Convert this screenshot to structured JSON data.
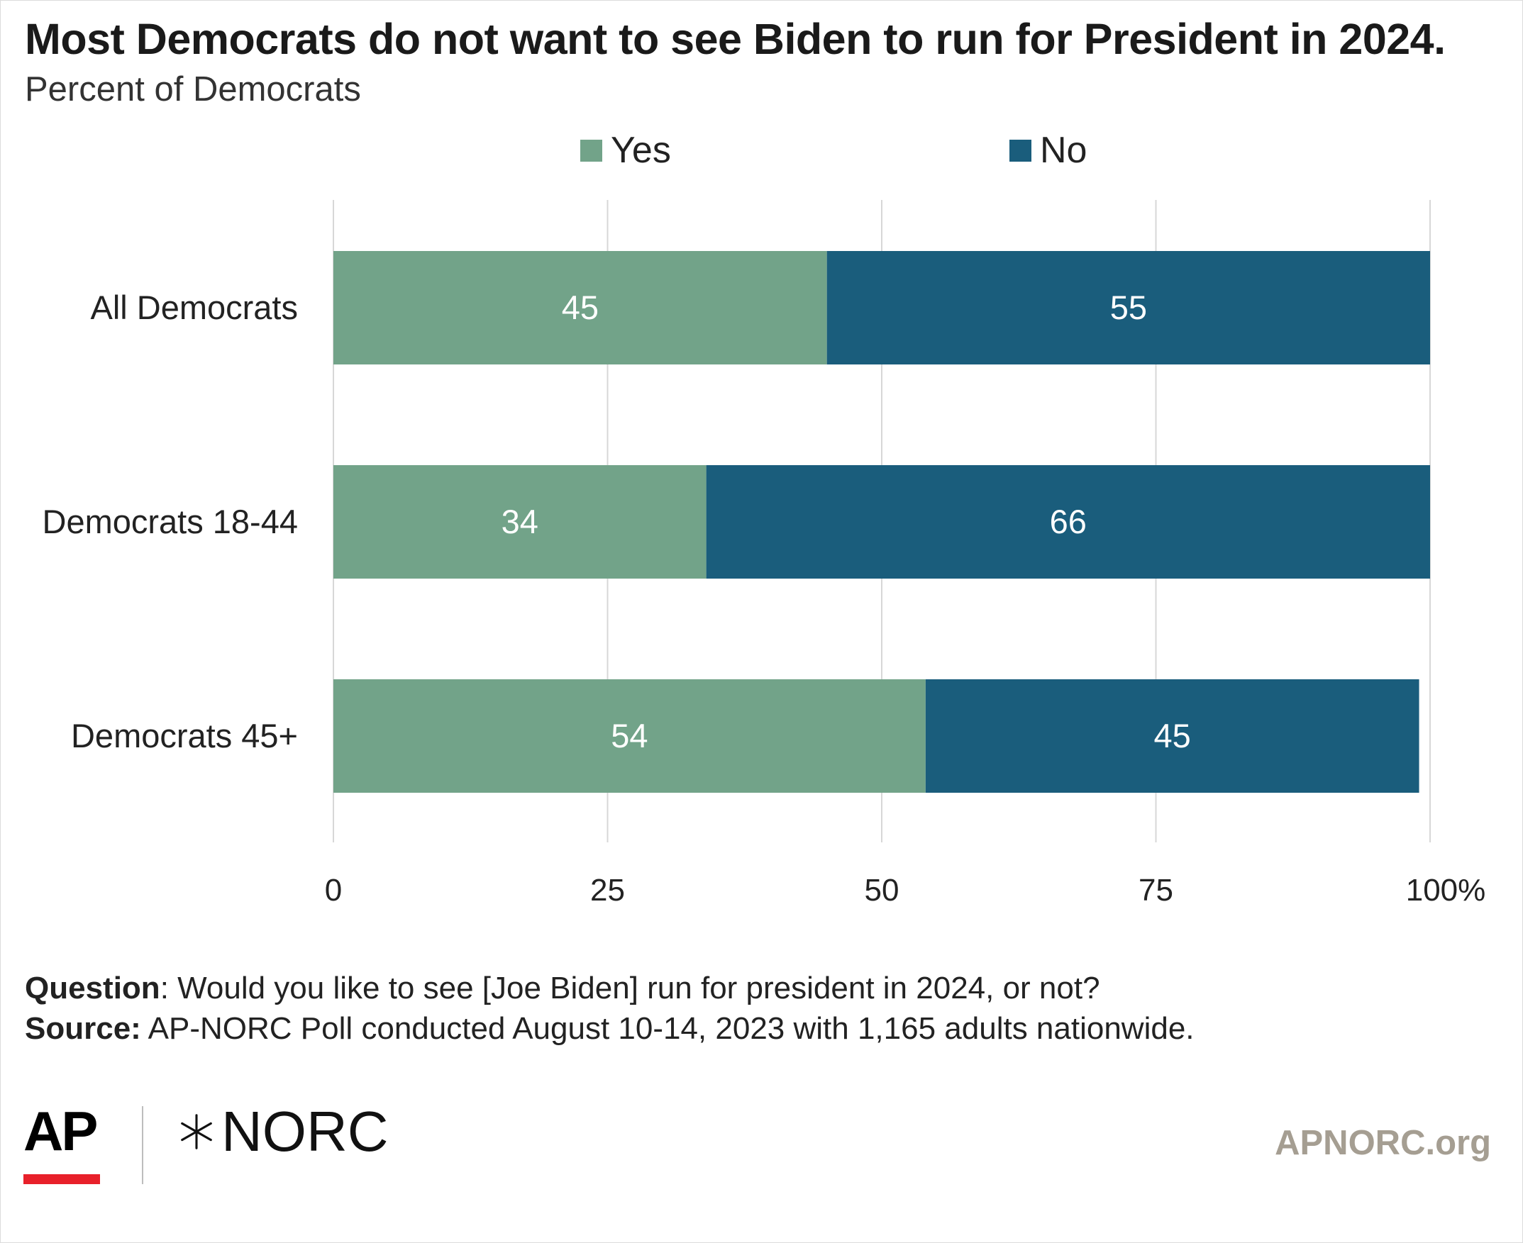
{
  "title": "Most Democrats do not want to see Biden to run for President in 2024.",
  "subtitle": "Percent of Democrats",
  "colors": {
    "yes": "#72a389",
    "no": "#1a5d7c",
    "grid": "#d7d7d7",
    "footer_url": "#a59e92",
    "ap_red": "#e8202a"
  },
  "chart_data": {
    "type": "bar",
    "orientation": "horizontal",
    "stacked": true,
    "categories": [
      "All Democrats",
      "Democrats 18-44",
      "Democrats 45+"
    ],
    "series": [
      {
        "name": "Yes",
        "values": [
          45,
          34,
          54
        ]
      },
      {
        "name": "No",
        "values": [
          55,
          66,
          45
        ]
      }
    ],
    "xlim": [
      0,
      100
    ],
    "xticks": [
      0,
      25,
      50,
      75,
      100
    ],
    "xtick_labels": [
      "0",
      "25",
      "50",
      "75",
      "100%"
    ],
    "grid": true,
    "legend": "top"
  },
  "footer": {
    "question_label": "Question",
    "question_text": ": Would you like to see [Joe Biden] run for president in 2024, or not?",
    "source_label": "Source:",
    "source_text": " AP-NORC Poll conducted August 10-14, 2023 with 1,165 adults nationwide."
  },
  "logos": {
    "ap": "AP",
    "norc": "NORC",
    "ap_icon": "ap-logo",
    "norc_icon": "norc-star-icon"
  },
  "site_url": "APNORC.org"
}
